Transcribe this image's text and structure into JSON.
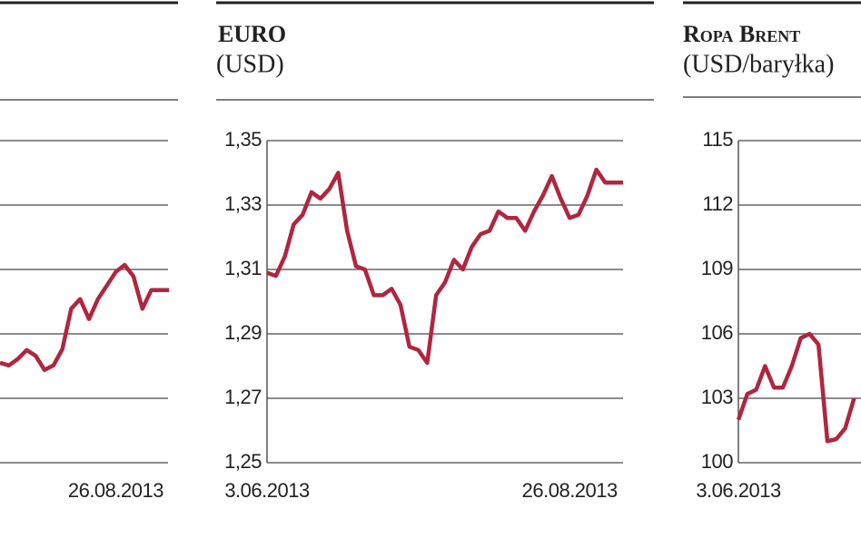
{
  "chart_data": [
    {
      "type": "line",
      "color": "#b0263f",
      "ylim": [
        0,
        5
      ],
      "categories": [
        null,
        null,
        null,
        null,
        null,
        null,
        null,
        null,
        null,
        null,
        null,
        null,
        null,
        "26.08.2013",
        null,
        null,
        null,
        null,
        null,
        null
      ],
      "values": [
        1.55,
        1.51,
        1.61,
        1.75,
        1.66,
        1.44,
        1.51,
        1.76,
        2.39,
        2.54,
        2.23,
        2.54,
        2.75,
        2.96,
        3.07,
        2.89,
        2.39,
        2.68,
        2.68,
        2.68
      ]
    },
    {
      "type": "line",
      "title": "EURO",
      "subtitle": "(USD)",
      "color": "#b0263f",
      "ylim": [
        1.25,
        1.35
      ],
      "yticks": [
        {
          "value": 1.25,
          "label": "1,25"
        },
        {
          "value": 1.27,
          "label": "1,27"
        },
        {
          "value": 1.29,
          "label": "1,29"
        },
        {
          "value": 1.31,
          "label": "1,31"
        },
        {
          "value": 1.33,
          "label": "1,33"
        },
        {
          "value": 1.35,
          "label": "1,35"
        }
      ],
      "categories": [
        "3.06.2013",
        null,
        null,
        null,
        null,
        null,
        null,
        null,
        null,
        null,
        null,
        null,
        null,
        null,
        null,
        null,
        null,
        null,
        null,
        null,
        null,
        null,
        null,
        null,
        null,
        null,
        null,
        null,
        null,
        null,
        null,
        null,
        null,
        null,
        "26.08.2013",
        null,
        null,
        null,
        null,
        null,
        null
      ],
      "values": [
        1.309,
        1.308,
        1.314,
        1.324,
        1.327,
        1.334,
        1.332,
        1.335,
        1.34,
        1.322,
        1.311,
        1.31,
        1.302,
        1.302,
        1.304,
        1.299,
        1.286,
        1.285,
        1.281,
        1.302,
        1.306,
        1.313,
        1.31,
        1.317,
        1.321,
        1.322,
        1.328,
        1.326,
        1.326,
        1.322,
        1.328,
        1.333,
        1.339,
        1.332,
        1.326,
        1.327,
        1.333,
        1.341,
        1.337,
        1.337,
        1.337
      ]
    },
    {
      "type": "line",
      "title": "Ropa Brent",
      "subtitle": "(USD/baryłka)",
      "color": "#b0263f",
      "ylim": [
        100,
        115
      ],
      "yticks": [
        100,
        103,
        106,
        109,
        112,
        115
      ],
      "categories": [
        "3.06.2013",
        null,
        null,
        null,
        null,
        null,
        null,
        null,
        null,
        null,
        null,
        null,
        null,
        null
      ],
      "values": [
        102,
        103.2,
        103.4,
        104.5,
        103.5,
        103.5,
        104.5,
        105.8,
        106,
        105.5,
        101,
        101.1,
        101.6,
        103
      ]
    }
  ]
}
